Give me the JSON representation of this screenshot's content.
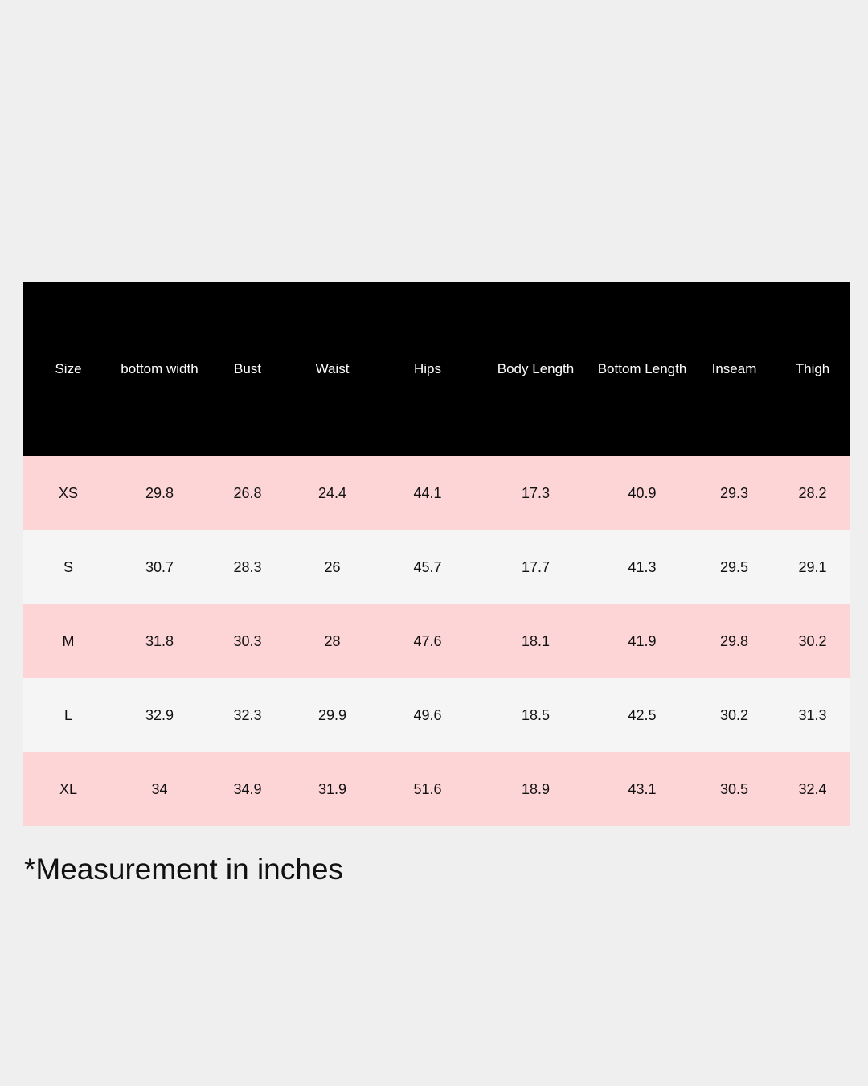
{
  "table": {
    "headers": [
      "Size",
      "bottom width",
      "Bust",
      "Waist",
      "Hips",
      "Body Length",
      "Bottom Length",
      "Inseam",
      "Thigh"
    ],
    "rows": [
      [
        "XS",
        "29.8",
        "26.8",
        "24.4",
        "44.1",
        "17.3",
        "40.9",
        "29.3",
        "28.2"
      ],
      [
        "S",
        "30.7",
        "28.3",
        "26",
        "45.7",
        "17.7",
        "41.3",
        "29.5",
        "29.1"
      ],
      [
        "M",
        "31.8",
        "30.3",
        "28",
        "47.6",
        "18.1",
        "41.9",
        "29.8",
        "30.2"
      ],
      [
        "L",
        "32.9",
        "32.3",
        "29.9",
        "49.6",
        "18.5",
        "42.5",
        "30.2",
        "31.3"
      ],
      [
        "XL",
        "34",
        "34.9",
        "31.9",
        "51.6",
        "18.9",
        "43.1",
        "30.5",
        "32.4"
      ]
    ]
  },
  "note": "*Measurement in inches",
  "colors": {
    "header_bg": "#000000",
    "pink_row": "#fdd5d7",
    "light_row": "#f5f5f5",
    "page_bg": "#efefef"
  }
}
